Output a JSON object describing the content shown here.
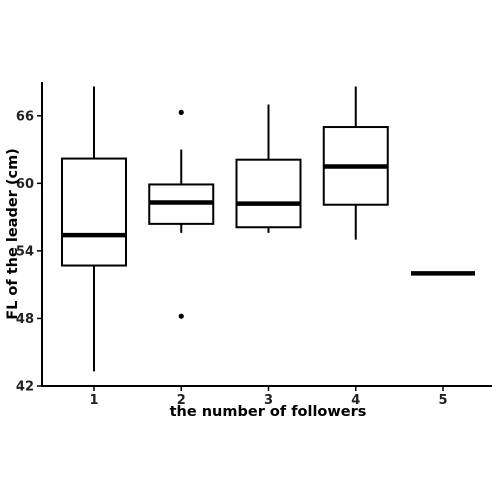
{
  "chart_data": {
    "type": "boxplot",
    "title": "",
    "xlabel": "the number of followers",
    "ylabel": "FL of the leader (cm)",
    "ylim": [
      42,
      69
    ],
    "yticks": [
      42,
      48,
      54,
      60,
      66
    ],
    "categories": [
      "1",
      "2",
      "3",
      "4",
      "5"
    ],
    "boxes": [
      {
        "category": "1",
        "whisker_low": 43.3,
        "q1": 52.7,
        "median": 55.4,
        "q3": 62.2,
        "whisker_high": 68.6,
        "outliers": []
      },
      {
        "category": "2",
        "whisker_low": 55.6,
        "q1": 56.4,
        "median": 58.3,
        "q3": 59.9,
        "whisker_high": 63.0,
        "outliers": [
          66.3,
          48.2
        ]
      },
      {
        "category": "3",
        "whisker_low": 55.6,
        "q1": 56.1,
        "median": 58.2,
        "q3": 62.1,
        "whisker_high": 67.0,
        "outliers": []
      },
      {
        "category": "4",
        "whisker_low": 55.0,
        "q1": 58.1,
        "median": 61.5,
        "q3": 65.0,
        "whisker_high": 68.6,
        "outliers": []
      },
      {
        "category": "5",
        "whisker_low": 52.0,
        "q1": 52.0,
        "median": 52.0,
        "q3": 52.0,
        "whisker_high": 52.0,
        "outliers": []
      }
    ],
    "grid": false,
    "legend": "none"
  }
}
